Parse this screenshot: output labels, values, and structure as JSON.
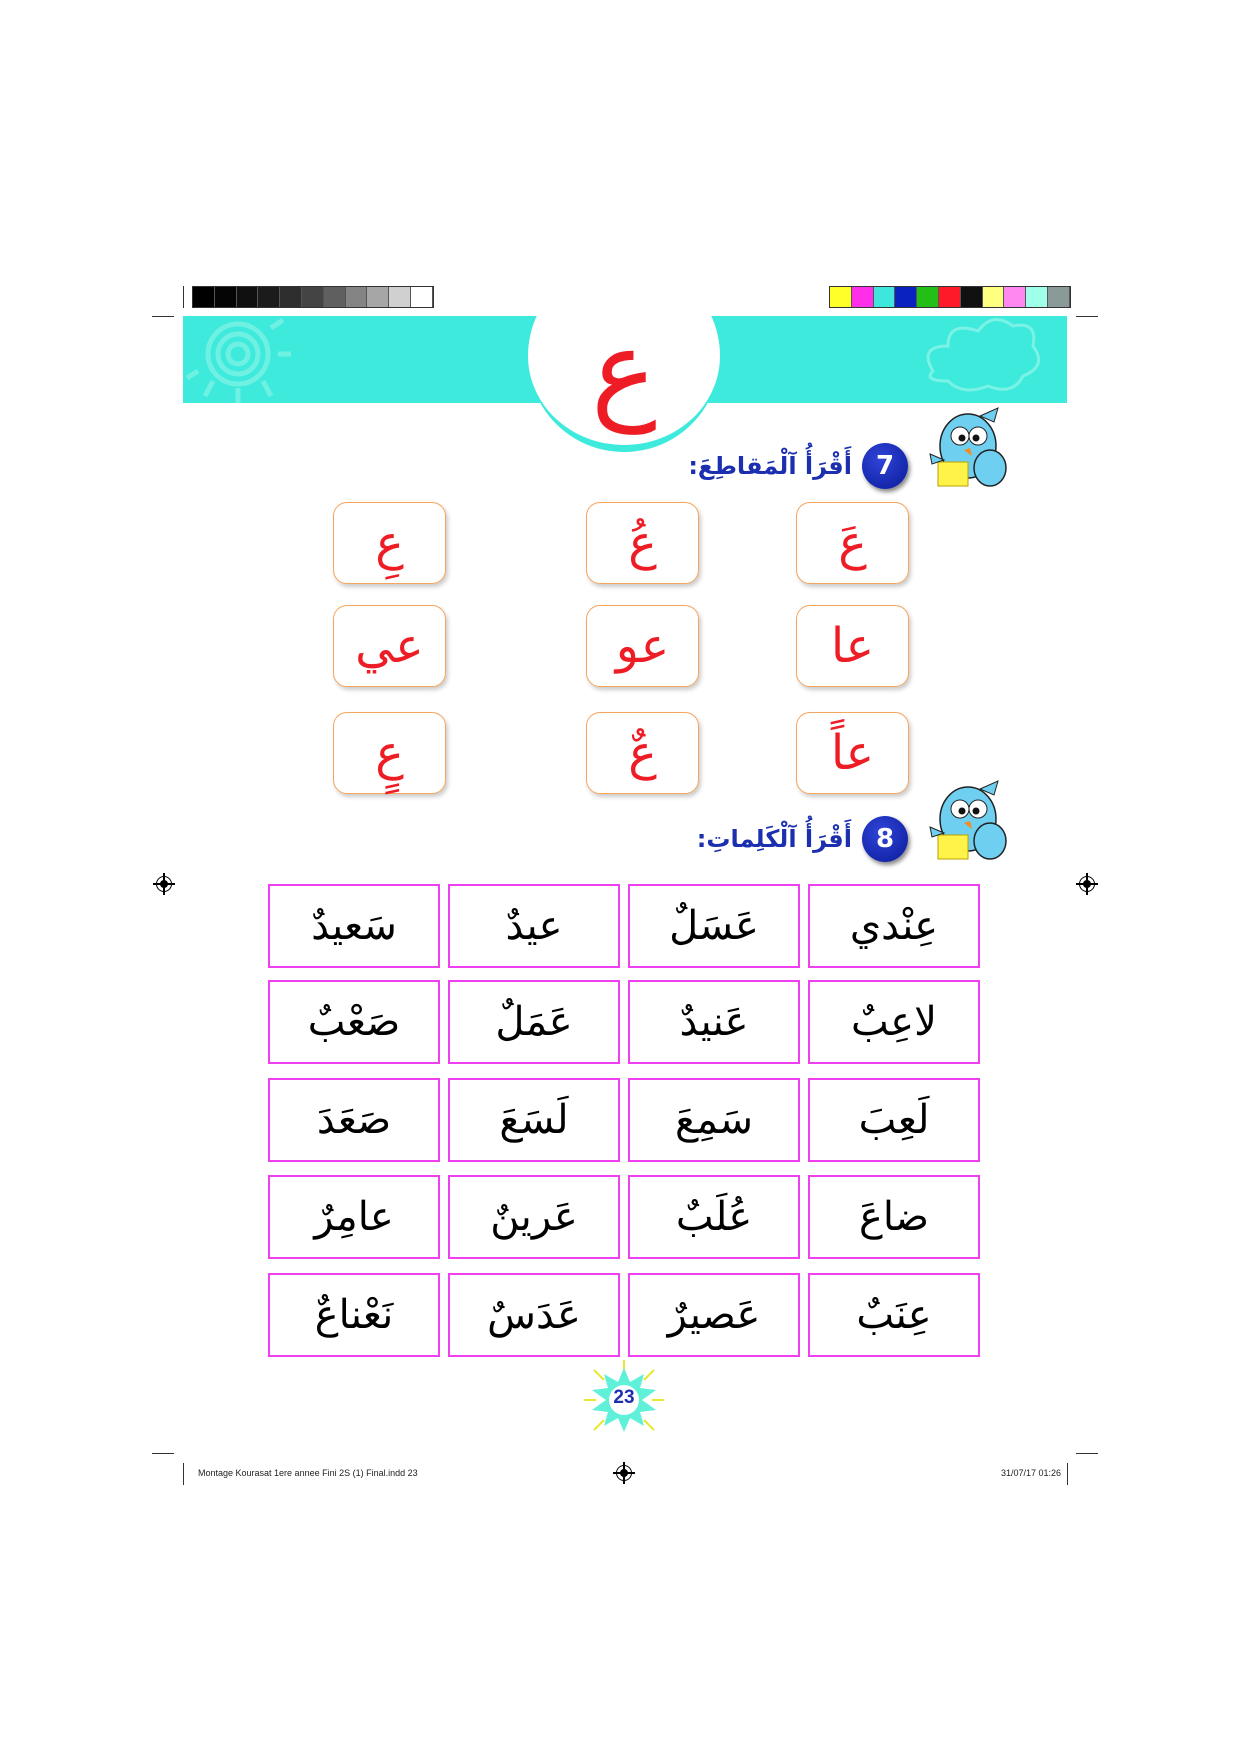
{
  "header": {
    "letter": "ع",
    "banner_color": "#3eeadb",
    "letter_color": "#ee1c25"
  },
  "exercise7": {
    "number": "7",
    "title": "أَقْرَأُ آلْمَقاطِعَ:",
    "syllables": [
      [
        "عَ",
        "عُ",
        "عِ"
      ],
      [
        "عا",
        "عو",
        "عي"
      ],
      [
        "عاً",
        "عٌ",
        "عٍ"
      ]
    ]
  },
  "exercise8": {
    "number": "8",
    "title": "أَقْرَأُ آلْكَلِماتِ:",
    "words": [
      [
        "عِنْدي",
        "عَسَلٌ",
        "عيدٌ",
        "سَعيدٌ"
      ],
      [
        "لاعِبٌ",
        "عَنيدٌ",
        "عَمَلٌ",
        "صَعْبٌ"
      ],
      [
        "لَعِبَ",
        "سَمِعَ",
        "لَسَعَ",
        "صَعَدَ"
      ],
      [
        "ضاعَ",
        "عُلَبٌ",
        "عَرينٌ",
        "عامِرٌ"
      ],
      [
        "عِنَبٌ",
        "عَصيرٌ",
        "عَدَسٌ",
        "نَعْناعٌ"
      ]
    ]
  },
  "page_number": "23",
  "footer": {
    "file": "Montage Kourasat 1ere annee Fini 2S (1) Final.indd   23",
    "date": "31/07/17   01:26"
  },
  "colors": {
    "grays": [
      "#000000",
      "#050505",
      "#101010",
      "#1b1b1b",
      "#2e2e2e",
      "#444444",
      "#5f5f5f",
      "#848484",
      "#a6a6a6",
      "#d0d0d0",
      "#ffffff"
    ],
    "swatches": [
      "#ffff2a",
      "#ff2ee8",
      "#3ee6dc",
      "#0a22c0",
      "#22c016",
      "#ff1a2a",
      "#111111",
      "#ffff80",
      "#ff88f0",
      "#a0ffe8",
      "#8a9a98"
    ],
    "syllable_border": "#f7a55c",
    "word_border": "#f03ff0",
    "heading_color": "#1b2fb0"
  }
}
